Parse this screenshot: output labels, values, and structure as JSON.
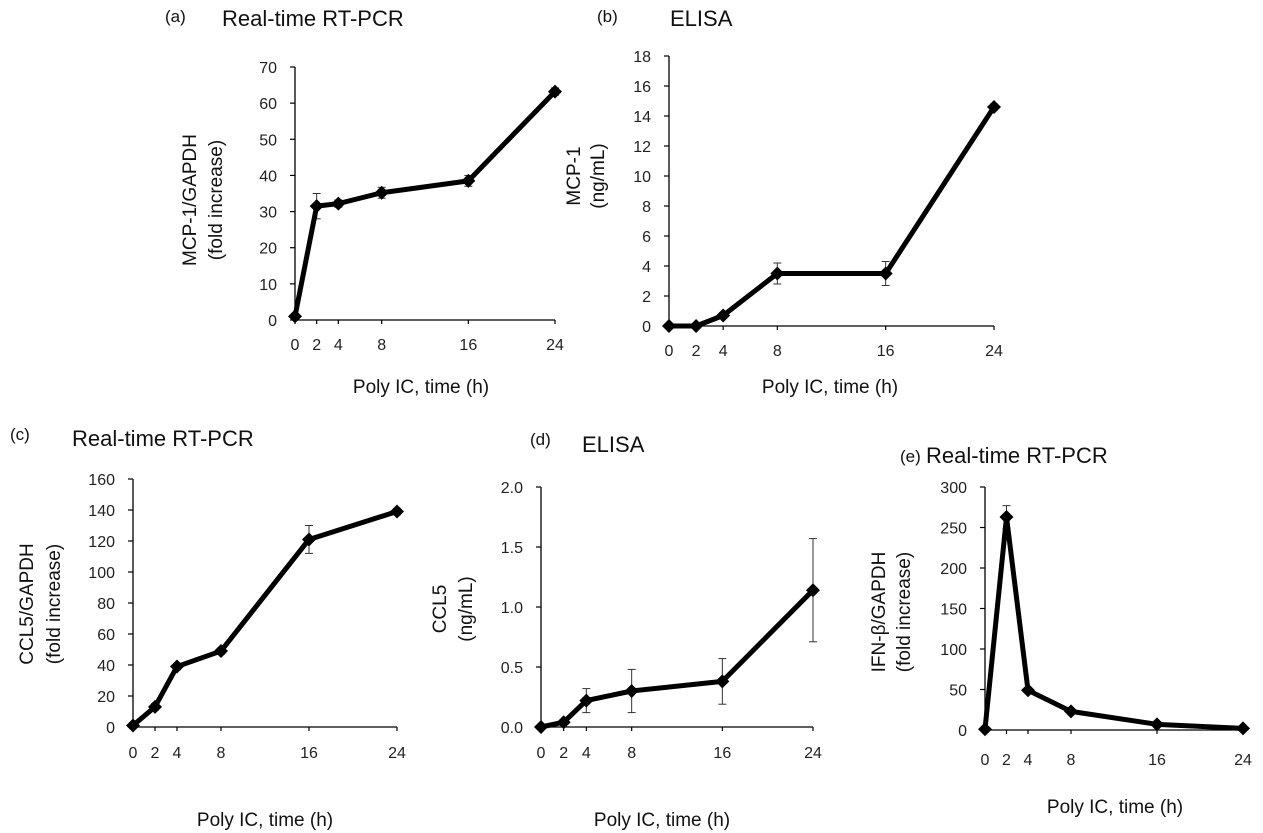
{
  "chart_data": [
    {
      "type": "line",
      "panel": "(a)",
      "title": "Real-time RT-PCR",
      "xlabel": "Poly IC, time (h)",
      "ylabel": [
        "MCP-1/GAPDH",
        "(fold increase)"
      ],
      "x": [
        0,
        2,
        4,
        8,
        16,
        24
      ],
      "xticks": [
        "0",
        "2",
        "4",
        "8",
        "16",
        "24"
      ],
      "xlim": [
        0,
        24
      ],
      "ylim": [
        0,
        70
      ],
      "yticks": [
        "0",
        "10",
        "20",
        "30",
        "40",
        "50",
        "60",
        "70"
      ],
      "ytick_values": [
        0,
        10,
        20,
        30,
        40,
        50,
        60,
        70
      ],
      "grid": false,
      "series": [
        {
          "values": [
            1,
            31.5,
            32.2,
            35.2,
            38.5,
            63.2
          ],
          "err": [
            0,
            3.5,
            1.0,
            1.5,
            1.5,
            1.0
          ]
        }
      ]
    },
    {
      "type": "line",
      "panel": "(b)",
      "title": "ELISA",
      "xlabel": "Poly IC, time (h)",
      "ylabel": [
        "MCP-1",
        "(ng/mL)"
      ],
      "x": [
        0,
        2,
        4,
        8,
        16,
        24
      ],
      "xticks": [
        "0",
        "2",
        "4",
        "8",
        "16",
        "24"
      ],
      "xlim": [
        0,
        24
      ],
      "ylim": [
        0,
        18
      ],
      "yticks": [
        "0",
        "2",
        "4",
        "6",
        "8",
        "10",
        "12",
        "14",
        "16",
        "18"
      ],
      "ytick_values": [
        0,
        2,
        4,
        6,
        8,
        10,
        12,
        14,
        16,
        18
      ],
      "grid": false,
      "series": [
        {
          "values": [
            0,
            0,
            0.7,
            3.5,
            3.5,
            14.6
          ],
          "err": [
            0,
            0,
            0.2,
            0.7,
            0.8,
            0.2
          ]
        }
      ]
    },
    {
      "type": "line",
      "panel": "(c)",
      "title": "Real-time RT-PCR",
      "xlabel": "Poly IC, time (h)",
      "ylabel": [
        "CCL5/GAPDH",
        "(fold increase)"
      ],
      "x": [
        0,
        2,
        4,
        8,
        16,
        24
      ],
      "xticks": [
        "0",
        "2",
        "4",
        "8",
        "16",
        "24"
      ],
      "xlim": [
        0,
        24
      ],
      "ylim": [
        0,
        160
      ],
      "yticks": [
        "0",
        "20",
        "40",
        "60",
        "80",
        "100",
        "120",
        "140",
        "160"
      ],
      "ytick_values": [
        0,
        20,
        40,
        60,
        80,
        100,
        120,
        140,
        160
      ],
      "grid": false,
      "series": [
        {
          "values": [
            1,
            13,
            39,
            49,
            121,
            139
          ],
          "err": [
            0,
            2,
            2,
            2,
            9,
            2
          ]
        }
      ]
    },
    {
      "type": "line",
      "panel": "(d)",
      "title": "ELISA",
      "xlabel": "Poly IC, time (h)",
      "ylabel": [
        "CCL5",
        "(ng/mL)"
      ],
      "x": [
        0,
        2,
        4,
        8,
        16,
        24
      ],
      "xticks": [
        "0",
        "2",
        "4",
        "8",
        "16",
        "24"
      ],
      "xlim": [
        0,
        24
      ],
      "ylim": [
        0,
        2.0
      ],
      "yticks": [
        "0.0",
        "0.5",
        "1.0",
        "1.5",
        "2.0"
      ],
      "ytick_values": [
        0,
        0.5,
        1.0,
        1.5,
        2.0
      ],
      "grid": false,
      "series": [
        {
          "values": [
            0,
            0.04,
            0.22,
            0.3,
            0.38,
            1.14
          ],
          "err": [
            0,
            0.02,
            0.1,
            0.18,
            0.19,
            0.43
          ]
        }
      ]
    },
    {
      "type": "line",
      "panel": "(e)",
      "title": "Real-time RT-PCR",
      "xlabel": "Poly IC, time (h)",
      "ylabel": [
        "IFN-β/GAPDH",
        "(fold increase)"
      ],
      "x": [
        0,
        2,
        4,
        8,
        16,
        24
      ],
      "xticks": [
        "0",
        "2",
        "4",
        "8",
        "16",
        "24"
      ],
      "xlim": [
        0,
        24
      ],
      "ylim": [
        0,
        300
      ],
      "yticks": [
        "0",
        "50",
        "100",
        "150",
        "200",
        "250",
        "300"
      ],
      "ytick_values": [
        0,
        50,
        100,
        150,
        200,
        250,
        300
      ],
      "grid": false,
      "series": [
        {
          "values": [
            1,
            263,
            49,
            23,
            7,
            2
          ],
          "err": [
            0,
            14,
            3,
            2,
            1,
            1
          ]
        }
      ]
    }
  ]
}
